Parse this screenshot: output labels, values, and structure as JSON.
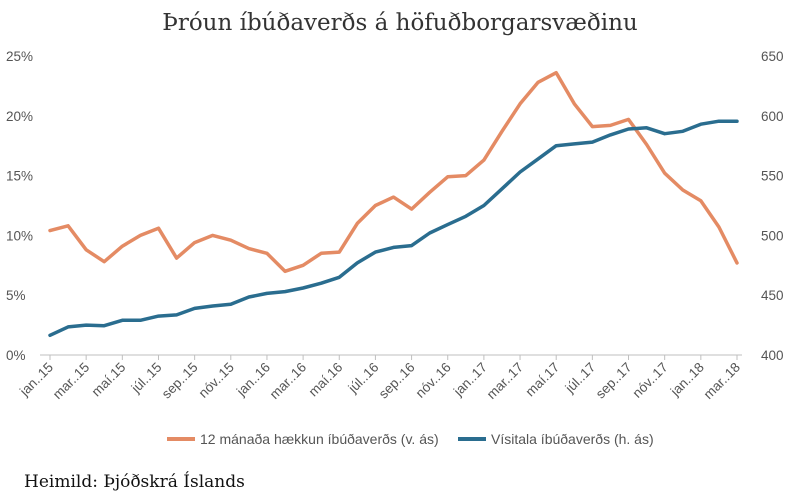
{
  "chart_data": {
    "type": "line",
    "title": "Þróun íbúðaverðs á höfuðborgarsvæðinu",
    "source": "Heimild: Þjóðskrá Íslands",
    "x": [
      "jan..15",
      "feb..15",
      "mar..15",
      "apr..15",
      "maí.15",
      "jún..15",
      "júl..15",
      "ágú..15",
      "sep..15",
      "okt..15",
      "nóv..15",
      "des..15",
      "jan..16",
      "feb..16",
      "mar..16",
      "apr..16",
      "maí.16",
      "jún..16",
      "júl..16",
      "ágú..16",
      "sep..16",
      "okt..16",
      "nóv..16",
      "des..16",
      "jan..17",
      "feb..17",
      "mar..17",
      "apr..17",
      "maí.17",
      "jún..17",
      "júl..17",
      "ágú..17",
      "sep..17",
      "okt..17",
      "nóv..17",
      "des..17",
      "jan..18",
      "feb..18",
      "mar..18"
    ],
    "x_tick_labels": [
      "jan..15",
      "mar..15",
      "maí.15",
      "júl..15",
      "sep..15",
      "nóv..15",
      "jan..16",
      "mar..16",
      "maí.16",
      "júl..16",
      "sep..16",
      "nóv..16",
      "jan..17",
      "mar..17",
      "maí.17",
      "júl..17",
      "sep..17",
      "nóv..17",
      "jan..18",
      "mar..18"
    ],
    "y_left": {
      "ylim": [
        0,
        25
      ],
      "ticks": [
        "0%",
        "5%",
        "10%",
        "15%",
        "20%",
        "25%"
      ]
    },
    "y_right": {
      "ylim": [
        400,
        650
      ],
      "ticks": [
        "400",
        "450",
        "500",
        "550",
        "600",
        "650"
      ]
    },
    "series": [
      {
        "name": "12 mánaða hækkun íbúðaverðs (v. ás)",
        "axis": "left",
        "color": "#e48b64",
        "values": [
          10.4,
          10.8,
          8.8,
          7.8,
          9.1,
          10.0,
          10.6,
          8.1,
          9.4,
          10.0,
          9.6,
          8.9,
          8.5,
          7.0,
          7.5,
          8.5,
          8.6,
          11.0,
          12.5,
          13.2,
          12.2,
          13.6,
          14.9,
          15.0,
          16.3,
          18.7,
          21.0,
          22.8,
          23.6,
          21.0,
          19.1,
          19.2,
          19.7,
          17.6,
          15.2,
          13.8,
          12.9,
          10.7,
          7.7
        ]
      },
      {
        "name": "Vísitala íbúðaverðs (h. ás)",
        "axis": "right",
        "color": "#2a6d8f",
        "values": [
          416.5,
          423.5,
          425.0,
          424.5,
          429.0,
          429.0,
          432.5,
          433.5,
          439.0,
          441.0,
          442.5,
          448.5,
          451.5,
          453.0,
          456.0,
          460.0,
          465.0,
          477.0,
          486.0,
          490.0,
          491.5,
          502.0,
          509.0,
          516.0,
          525.0,
          539.0,
          553.0,
          564.0,
          575.0,
          576.5,
          578.0,
          584.0,
          589.0,
          590.0,
          585.0,
          587.0,
          593.0,
          595.5,
          595.5
        ]
      }
    ]
  }
}
